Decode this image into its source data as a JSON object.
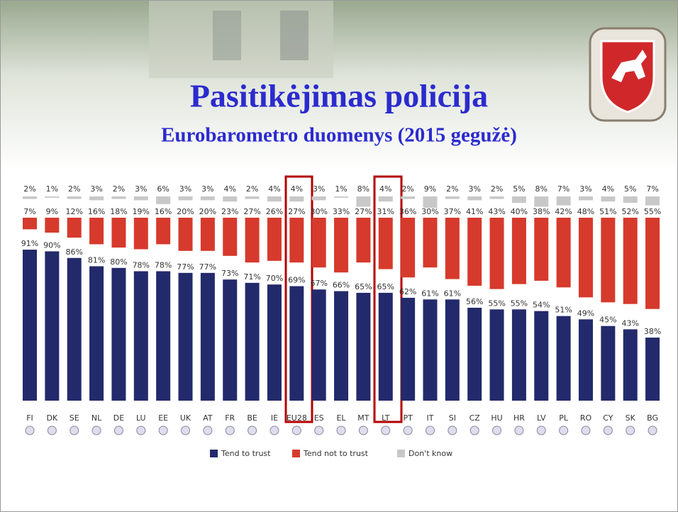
{
  "chart_data": {
    "type": "bar",
    "title": "Pasitikėjimas policija",
    "subtitle": "Eurobarometro duomenys (2015 gegužė)",
    "categories": [
      "FI",
      "DK",
      "SE",
      "NL",
      "DE",
      "LU",
      "EE",
      "UK",
      "AT",
      "FR",
      "BE",
      "IE",
      "EU28",
      "ES",
      "EL",
      "MT",
      "LT",
      "PT",
      "IT",
      "SI",
      "CZ",
      "HU",
      "HR",
      "LV",
      "PL",
      "RO",
      "CY",
      "SK",
      "BG"
    ],
    "series": [
      {
        "name": "Tend to trust",
        "color": "#232a6b",
        "values": [
          91,
          90,
          86,
          81,
          80,
          78,
          78,
          77,
          77,
          73,
          71,
          70,
          69,
          67,
          66,
          65,
          65,
          62,
          61,
          61,
          56,
          55,
          55,
          54,
          51,
          49,
          45,
          43,
          38
        ],
        "value_labels": [
          "91%",
          "90%",
          "86%",
          "81%",
          "80%",
          "78%",
          "78%",
          "77%",
          "77%",
          "73%",
          "71%",
          "70%",
          "69%",
          "67%",
          "66%",
          "65%",
          "65%",
          "62%",
          "61%",
          "61%",
          "56%",
          "55%",
          "55%",
          "54%",
          "51%",
          "49%",
          "45%",
          "43%",
          "38%"
        ]
      },
      {
        "name": "Tend not to trust",
        "color": "#d63a2c",
        "values": [
          7,
          9,
          12,
          16,
          18,
          19,
          16,
          20,
          20,
          23,
          27,
          26,
          27,
          30,
          33,
          27,
          31,
          36,
          30,
          37,
          41,
          43,
          40,
          38,
          42,
          48,
          51,
          52,
          55
        ],
        "value_labels": [
          "7%",
          "9%",
          "12%",
          "16%",
          "18%",
          "19%",
          "16%",
          "20%",
          "20%",
          "23%",
          "27%",
          "26%",
          "27%",
          "30%",
          "33%",
          "27%",
          "31%",
          "36%",
          "30%",
          "37%",
          "41%",
          "43%",
          "40%",
          "38%",
          "42%",
          "48%",
          "51%",
          "52%",
          "55%"
        ]
      },
      {
        "name": "Don't know",
        "color": "#c8c8c8",
        "values": [
          2,
          1,
          2,
          3,
          2,
          3,
          6,
          3,
          3,
          4,
          2,
          4,
          4,
          3,
          1,
          8,
          4,
          2,
          9,
          2,
          3,
          2,
          5,
          8,
          7,
          3,
          4,
          5,
          7
        ],
        "value_labels": [
          "2%",
          "1%",
          "2%",
          "3%",
          "2%",
          "3%",
          "6%",
          "3%",
          "3%",
          "4%",
          "2%",
          "4%",
          "4%",
          "3%",
          "1%",
          "8%",
          "4%",
          "2%",
          "9%",
          "2%",
          "3%",
          "2%",
          "5%",
          "8%",
          "7%",
          "3%",
          "4%",
          "5%",
          "7%"
        ]
      }
    ]
  }
}
